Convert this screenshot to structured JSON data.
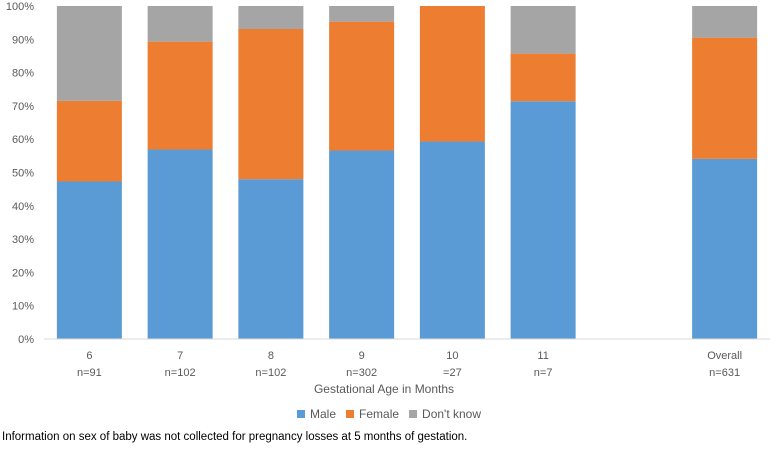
{
  "chart_data": {
    "type": "bar",
    "stacked": true,
    "xlabel": "Gestational Age in Months",
    "ylabel": "",
    "ylim": [
      0,
      100
    ],
    "y_tick_suffix": "%",
    "y_ticks": [
      0,
      10,
      20,
      30,
      40,
      50,
      60,
      70,
      80,
      90,
      100
    ],
    "grid": false,
    "legend_position": "bottom",
    "categories": [
      {
        "label": "6",
        "n": "n=91"
      },
      {
        "label": "7",
        "n": "n=102"
      },
      {
        "label": "8",
        "n": "n=102"
      },
      {
        "label": "9",
        "n": "n=302"
      },
      {
        "label": "10",
        "n": "=27"
      },
      {
        "label": "11",
        "n": "n=7"
      },
      {
        "label": "",
        "n": ""
      },
      {
        "label": "Overall",
        "n": "n=631"
      }
    ],
    "series": [
      {
        "name": "Male",
        "color": "#5B9BD5",
        "values": [
          47.3,
          56.9,
          48.0,
          56.6,
          59.3,
          71.4,
          null,
          54.1
        ]
      },
      {
        "name": "Female",
        "color": "#ED7D31",
        "values": [
          24.2,
          32.4,
          45.1,
          38.7,
          40.7,
          14.3,
          null,
          36.4
        ]
      },
      {
        "name": "Don't know",
        "color": "#A5A5A5",
        "values": [
          28.5,
          10.7,
          6.9,
          4.7,
          0.0,
          14.3,
          null,
          9.5
        ]
      }
    ]
  },
  "footnote": "Information on sex of baby was not collected for pregnancy losses at 5 months of gestation."
}
